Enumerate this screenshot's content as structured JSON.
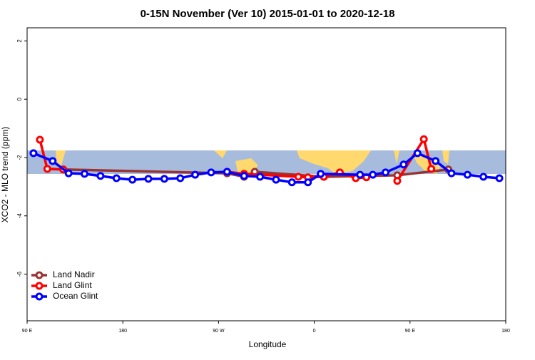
{
  "chart_data": {
    "type": "line",
    "title": "0-15N November (Ver 10)   2015-01-01 to 2020-12-18",
    "xlabel": "Longitude",
    "ylabel": "XCO2 - MLO trend (ppm)",
    "xlim": [
      90,
      540
    ],
    "ylim": [
      -7.6,
      2.45
    ],
    "xticks": [
      {
        "value": 90,
        "label": "90 E"
      },
      {
        "value": 180,
        "label": "180"
      },
      {
        "value": 270,
        "label": "90 W"
      },
      {
        "value": 360,
        "label": "0"
      },
      {
        "value": 450,
        "label": "90 E"
      },
      {
        "value": 540,
        "label": "180"
      }
    ],
    "yticks": [
      -6,
      -4,
      -2,
      0,
      2
    ],
    "legend": "bottom-left",
    "series": [
      {
        "name": "Land Nadir",
        "color": "#993333",
        "x": [
          124,
          278,
          294,
          304,
          369,
          438,
          486
        ],
        "values": [
          -2.41,
          -2.54,
          -2.66,
          -2.49,
          -2.66,
          -2.61,
          -2.41
        ]
      },
      {
        "name": "Land Glint",
        "color": "#ff0000",
        "x": [
          102,
          109,
          124,
          200,
          278,
          294,
          345,
          354,
          369,
          384,
          399,
          409,
          420,
          438,
          463,
          470
        ],
        "values": [
          -1.39,
          -2.39,
          -2.41,
          null,
          -2.49,
          -2.56,
          -2.66,
          -2.68,
          -2.66,
          -2.51,
          -2.71,
          -2.68,
          null,
          -2.8,
          -1.37,
          -2.39
        ]
      },
      {
        "name": "Ocean Glint",
        "color": "#0000ff",
        "x": [
          96,
          114,
          129,
          144,
          159,
          174,
          189,
          204,
          219,
          234,
          248,
          263,
          278,
          294,
          309,
          324,
          339,
          354,
          366,
          403,
          415,
          427,
          444,
          457,
          474,
          489,
          504,
          519,
          534
        ],
        "values": [
          -1.85,
          -2.12,
          -2.54,
          -2.56,
          -2.63,
          -2.71,
          -2.76,
          -2.73,
          -2.73,
          -2.71,
          -2.59,
          -2.51,
          -2.49,
          -2.63,
          -2.66,
          -2.76,
          -2.85,
          -2.85,
          -2.56,
          -2.59,
          -2.59,
          -2.51,
          -2.24,
          -1.85,
          -2.12,
          -2.54,
          -2.59,
          -2.66,
          -2.71
        ]
      }
    ]
  }
}
